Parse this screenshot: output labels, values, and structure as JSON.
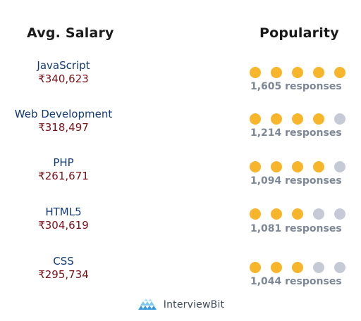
{
  "headers": {
    "left": "Avg. Salary",
    "right": "Popularity"
  },
  "colors": {
    "name": "#123a78",
    "salary": "#7a0f16",
    "dot_on": "#f7b52c",
    "dot_off": "#c5cad6",
    "responses": "#7d8798"
  },
  "rows": [
    {
      "name": "JavaScript",
      "salary": "₹340,623",
      "rating": 5,
      "max": 5,
      "responses": "1,605 responses"
    },
    {
      "name": "Web Development",
      "salary": "₹318,497",
      "rating": 4,
      "max": 5,
      "responses": "1,214 responses"
    },
    {
      "name": "PHP",
      "salary": "₹261,671",
      "rating": 4,
      "max": 5,
      "responses": "1,094 responses"
    },
    {
      "name": "HTML5",
      "salary": "₹304,619",
      "rating": 3,
      "max": 5,
      "responses": "1,081 responses"
    },
    {
      "name": "CSS",
      "salary": "₹295,734",
      "rating": 3,
      "max": 5,
      "responses": "1,044 responses"
    }
  ],
  "brand": {
    "icon": "interviewbit-logo-icon",
    "name": "InterviewBit"
  }
}
